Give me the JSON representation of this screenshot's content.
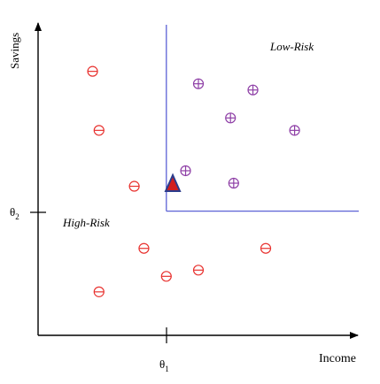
{
  "chart_data": {
    "type": "scatter",
    "title": "",
    "xlabel": "Income",
    "ylabel": "Savings",
    "xlim": [
      0,
      10
    ],
    "ylim": [
      0,
      10
    ],
    "grid": false,
    "thresholds": {
      "theta1": {
        "label": "θ",
        "sub": "1",
        "x": 4.0
      },
      "theta2": {
        "label": "θ",
        "sub": "2",
        "y": 4.0
      }
    },
    "regions": [
      {
        "name": "Low-Risk"
      },
      {
        "name": "High-Risk"
      }
    ],
    "series": [
      {
        "marker": "circle-minus",
        "color": "#e8322f",
        "points": [
          [
            1.7,
            8.5
          ],
          [
            1.9,
            6.6
          ],
          [
            3.0,
            4.8
          ],
          [
            3.3,
            2.8
          ],
          [
            4.0,
            1.9
          ],
          [
            5.0,
            2.1
          ],
          [
            7.1,
            2.8
          ],
          [
            1.9,
            1.4
          ]
        ]
      },
      {
        "marker": "circle-plus",
        "color": "#8e3fa6",
        "points": [
          [
            5.0,
            8.1
          ],
          [
            6.7,
            7.9
          ],
          [
            6.0,
            7.0
          ],
          [
            8.0,
            6.6
          ],
          [
            4.6,
            5.3
          ],
          [
            6.1,
            4.9
          ]
        ]
      },
      {
        "marker": "triangle",
        "fill": "#d11f1f",
        "stroke": "#2b3c8c",
        "points": [
          [
            4.2,
            4.9
          ]
        ]
      }
    ]
  }
}
